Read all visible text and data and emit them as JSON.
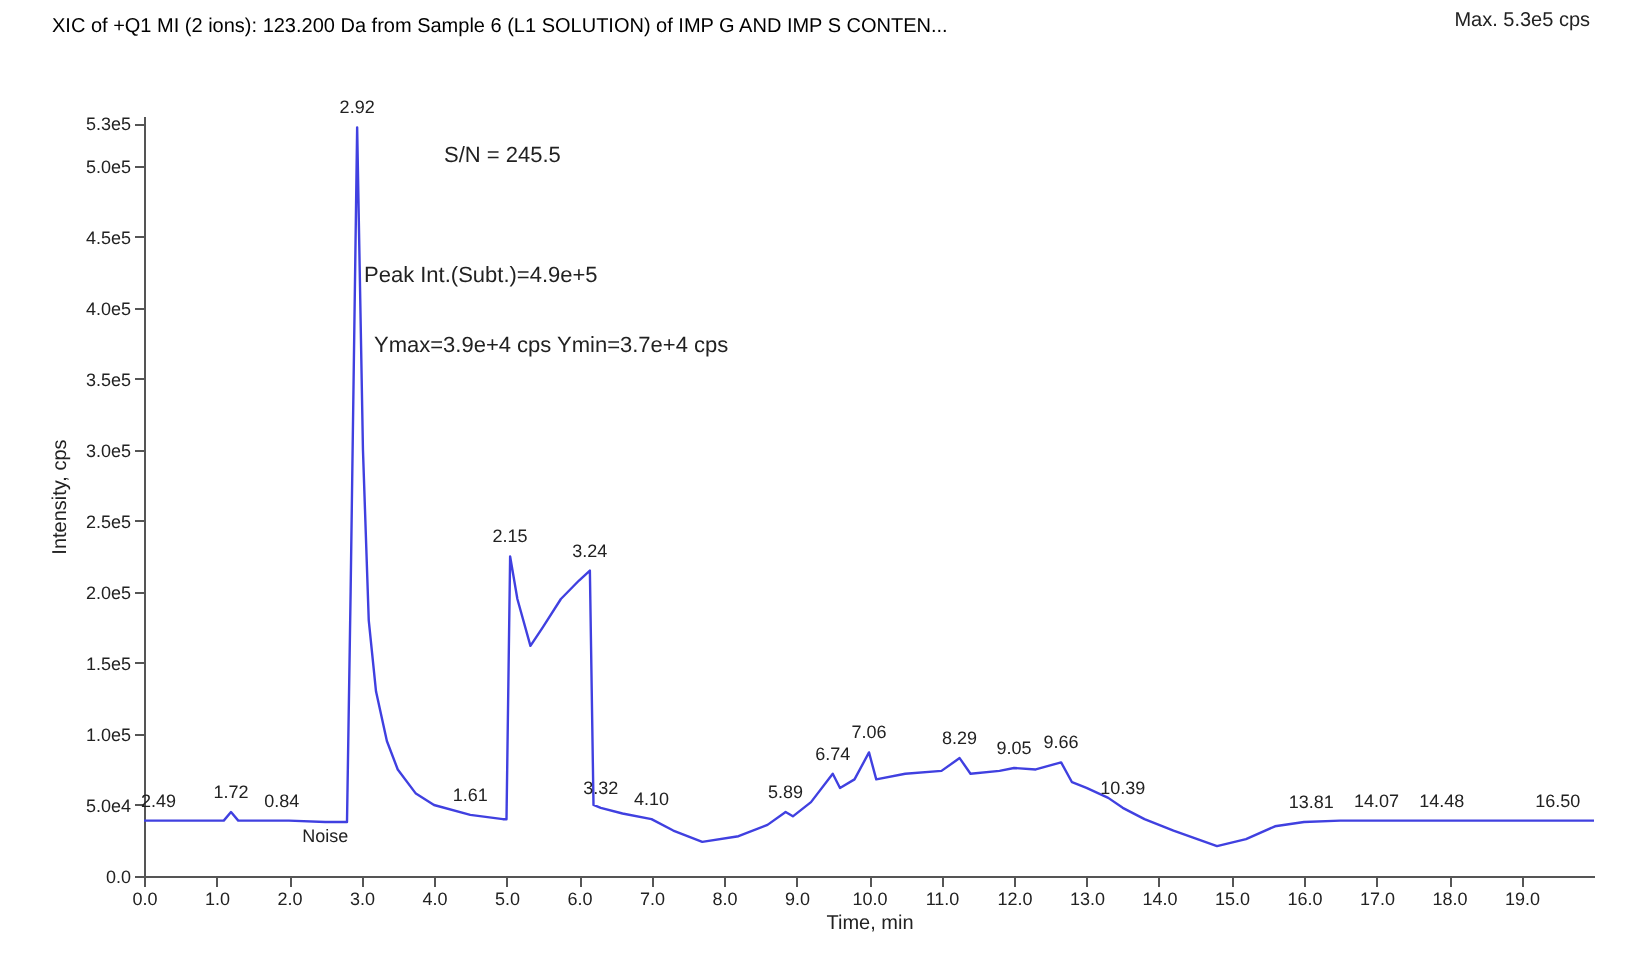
{
  "chart_data": {
    "type": "line",
    "xlabel": "Time, min",
    "ylabel": "Intensity, cps",
    "xlim": [
      0,
      20
    ],
    "ylim": [
      0,
      535000
    ],
    "xticks": [
      {
        "value": 0,
        "label": "0.0"
      },
      {
        "value": 1,
        "label": "1.0"
      },
      {
        "value": 2,
        "label": "2.0"
      },
      {
        "value": 3,
        "label": "3.0"
      },
      {
        "value": 4,
        "label": "4.0"
      },
      {
        "value": 5,
        "label": "5.0"
      },
      {
        "value": 6,
        "label": "6.0"
      },
      {
        "value": 7,
        "label": "7.0"
      },
      {
        "value": 8,
        "label": "8.0"
      },
      {
        "value": 9,
        "label": "9.0"
      },
      {
        "value": 10,
        "label": "10.0"
      },
      {
        "value": 11,
        "label": "11.0"
      },
      {
        "value": 12,
        "label": "12.0"
      },
      {
        "value": 13,
        "label": "13.0"
      },
      {
        "value": 14,
        "label": "14.0"
      },
      {
        "value": 15,
        "label": "15.0"
      },
      {
        "value": 16,
        "label": "16.0"
      },
      {
        "value": 17,
        "label": "17.0"
      },
      {
        "value": 18,
        "label": "18.0"
      },
      {
        "value": 19,
        "label": "19.0"
      }
    ],
    "yticks": [
      {
        "value": 0,
        "label": "0.0"
      },
      {
        "value": 50000,
        "label": "5.0e4"
      },
      {
        "value": 100000,
        "label": "1.0e5"
      },
      {
        "value": 150000,
        "label": "1.5e5"
      },
      {
        "value": 200000,
        "label": "2.0e5"
      },
      {
        "value": 250000,
        "label": "2.5e5"
      },
      {
        "value": 300000,
        "label": "3.0e5"
      },
      {
        "value": 350000,
        "label": "3.5e5"
      },
      {
        "value": 400000,
        "label": "4.0e5"
      },
      {
        "value": 450000,
        "label": "4.5e5"
      },
      {
        "value": 500000,
        "label": "5.0e5"
      },
      {
        "value": 530000,
        "label": "5.3e5"
      }
    ],
    "grid": false,
    "legend": "top",
    "marker": "none",
    "line_style": "solid",
    "series": [
      {
        "name": "XIC of +Q1 MI (2 ions): 123.200 Da from Sample 6 (L1 SOLUTION) of IMP G AND IMP S CONTEN...",
        "color": "#4040e0",
        "x": [
          0,
          0.5,
          1.1,
          1.2,
          1.3,
          2.0,
          2.5,
          2.8,
          2.85,
          2.94,
          3.02,
          3.1,
          3.2,
          3.35,
          3.5,
          3.75,
          4.0,
          4.5,
          4.95,
          5.0,
          5.05,
          5.15,
          5.33,
          5.5,
          5.75,
          6.0,
          6.15,
          6.2,
          6.3,
          6.6,
          7.0,
          7.3,
          7.7,
          8.2,
          8.6,
          8.85,
          8.95,
          9.2,
          9.5,
          9.6,
          9.8,
          10.0,
          10.1,
          10.5,
          11.0,
          11.25,
          11.4,
          11.8,
          12.0,
          12.3,
          12.65,
          12.8,
          13.0,
          13.3,
          13.5,
          13.8,
          14.2,
          14.8,
          15.2,
          15.6,
          16.0,
          16.5,
          17.0,
          18.0,
          19.0,
          20.0
        ],
        "values": [
          39000,
          39000,
          39000,
          45000,
          39000,
          39000,
          38000,
          38000,
          200000,
          527000,
          300000,
          180000,
          130000,
          95000,
          75000,
          58000,
          50000,
          43000,
          40000,
          40000,
          225000,
          195000,
          162000,
          175000,
          195000,
          208000,
          215000,
          50000,
          48000,
          44000,
          40000,
          32000,
          24000,
          28000,
          36000,
          45000,
          42000,
          52000,
          72000,
          62000,
          68000,
          87000,
          68000,
          72000,
          74000,
          83000,
          72000,
          74000,
          76000,
          75000,
          80000,
          66000,
          62000,
          55000,
          48000,
          40000,
          32000,
          21000,
          26000,
          35000,
          38000,
          39000,
          39000,
          39000,
          39000,
          39000
        ]
      }
    ],
    "annotations": [
      "Max. 5.3e5 cps",
      "S/N = 245.5",
      "Peak Int.(Subt.)=4.9e+5",
      "Ymax=3.9e+4 cps  Ymin=3.7e+4 cps",
      {
        "text": "Noise",
        "x": 2.5,
        "y": 38000
      },
      {
        "text": "2.49",
        "x": 0.2,
        "y": 39000
      },
      {
        "text": "1.72",
        "x": 1.2,
        "y": 45000
      },
      {
        "text": "0.84",
        "x": 1.9,
        "y": 39000
      },
      {
        "text": "2.92",
        "x": 2.94,
        "y": 527000
      },
      {
        "text": "1.61",
        "x": 4.5,
        "y": 43000
      },
      {
        "text": "2.15",
        "x": 5.05,
        "y": 225000
      },
      {
        "text": "3.24",
        "x": 6.15,
        "y": 215000
      },
      {
        "text": "3.32",
        "x": 6.3,
        "y": 48000
      },
      {
        "text": "4.10",
        "x": 7.0,
        "y": 40000
      },
      {
        "text": "5.89",
        "x": 8.85,
        "y": 45000
      },
      {
        "text": "6.74",
        "x": 9.5,
        "y": 72000
      },
      {
        "text": "7.06",
        "x": 10.0,
        "y": 87000
      },
      {
        "text": "8.29",
        "x": 11.25,
        "y": 83000
      },
      {
        "text": "9.05",
        "x": 12.0,
        "y": 76000
      },
      {
        "text": "9.66",
        "x": 12.65,
        "y": 80000
      },
      {
        "text": "10.39",
        "x": 13.5,
        "y": 48000
      },
      {
        "text": "13.81",
        "x": 16.1,
        "y": 38000
      },
      {
        "text": "14.07",
        "x": 17.0,
        "y": 39000
      },
      {
        "text": "14.48",
        "x": 17.9,
        "y": 39000
      },
      {
        "text": "16.50",
        "x": 19.5,
        "y": 39000
      }
    ]
  }
}
